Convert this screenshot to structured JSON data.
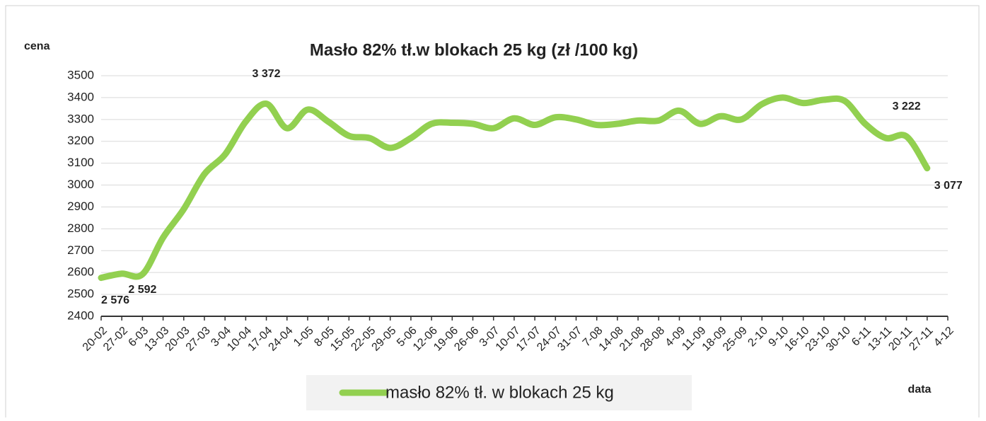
{
  "chart_data": {
    "type": "line",
    "title": "Masło 82% tł.w blokach 25 kg (zł /100 kg)",
    "y_label": "cena",
    "x_label": "data",
    "categories": [
      "20-02",
      "27-02",
      "6-03",
      "13-03",
      "20-03",
      "27-03",
      "3-04",
      "10-04",
      "17-04",
      "24-04",
      "1-05",
      "8-05",
      "15-05",
      "22-05",
      "29-05",
      "5-06",
      "12-06",
      "19-06",
      "26-06",
      "3-07",
      "10-07",
      "17-07",
      "24-07",
      "31-07",
      "7-08",
      "14-08",
      "21-08",
      "28-08",
      "4-09",
      "11-09",
      "18-09",
      "25-09",
      "2-10",
      "9-10",
      "16-10",
      "23-10",
      "30-10",
      "6-11",
      "13-11",
      "20-11",
      "27-11",
      "4-12"
    ],
    "series": [
      {
        "name": "masło 82% tł. w blokach 25 kg",
        "color": "#92d050",
        "values": [
          2576,
          2595,
          2592,
          2760,
          2890,
          3050,
          3140,
          3290,
          3372,
          3260,
          3345,
          3290,
          3225,
          3215,
          3170,
          3215,
          3280,
          3285,
          3280,
          3260,
          3305,
          3275,
          3310,
          3300,
          3275,
          3280,
          3295,
          3295,
          3340,
          3280,
          3315,
          3300,
          3370,
          3400,
          3375,
          3390,
          3385,
          3280,
          3215,
          3222,
          3077,
          null
        ],
        "value_labels": [
          "2 576",
          null,
          "2 592",
          null,
          null,
          null,
          null,
          null,
          "3 372",
          null,
          null,
          null,
          null,
          null,
          null,
          null,
          null,
          null,
          null,
          null,
          null,
          null,
          null,
          null,
          null,
          null,
          null,
          null,
          null,
          null,
          null,
          null,
          null,
          null,
          null,
          null,
          null,
          null,
          null,
          "3 222",
          "3 077",
          null
        ]
      }
    ],
    "ylim": [
      2400,
      3500
    ],
    "yticks": [
      2400,
      2500,
      2600,
      2700,
      2800,
      2900,
      3000,
      3100,
      3200,
      3300,
      3400,
      3500
    ],
    "grid": true,
    "legend": "bottom"
  }
}
